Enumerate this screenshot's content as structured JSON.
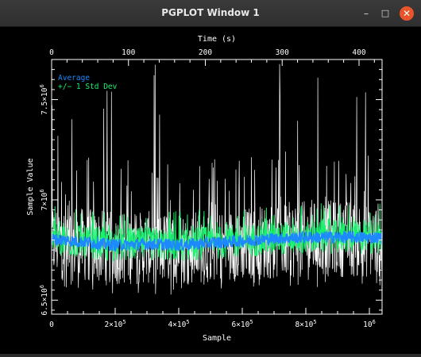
{
  "window": {
    "title": "PGPLOT Window 1",
    "minimize_glyph": "–",
    "maximize_glyph": "□",
    "close_glyph": "✕",
    "close_color": "#e9542a"
  },
  "chart_data": {
    "type": "line",
    "top_xlabel": "Time (s)",
    "xlabel": "Sample",
    "ylabel": "Sample Value",
    "top_ticks": [
      "0",
      "100",
      "200",
      "300",
      "400"
    ],
    "top_tick_values": [
      0,
      100,
      200,
      300,
      400
    ],
    "top_xlim": [
      0,
      430
    ],
    "bottom_ticks": [
      "0",
      "2×10^5",
      "4×10^5",
      "6×10^5",
      "8×10^5",
      "10^6"
    ],
    "bottom_tick_values": [
      0,
      200000,
      400000,
      600000,
      800000,
      1000000
    ],
    "xlim": [
      0,
      1040000
    ],
    "yticks": [
      "6.5×10^6",
      "7×10^6",
      "7.5×10^6"
    ],
    "ytick_values": [
      6500000,
      7000000,
      7500000
    ],
    "ylim": [
      6430000,
      7700000
    ],
    "legend": [
      {
        "label": "Average",
        "color": "#1e88ff"
      },
      {
        "label": "+/− 1 Std Dev",
        "color": "#19f06e"
      }
    ],
    "series": [
      {
        "name": "Average",
        "color": "#1e88ff",
        "x": [
          0,
          100000,
          200000,
          300000,
          400000,
          500000,
          600000,
          700000,
          800000,
          900000,
          1000000,
          1040000
        ],
        "y": [
          6805000,
          6790000,
          6775000,
          6780000,
          6775000,
          6785000,
          6795000,
          6808000,
          6813000,
          6815000,
          6812000,
          6812000
        ]
      },
      {
        "name": "+/− 1 Std Dev",
        "color": "#19f06e",
        "x": [
          0,
          100000,
          200000,
          300000,
          400000,
          500000,
          600000,
          700000,
          800000,
          900000,
          1000000,
          1040000
        ],
        "y_upper": [
          6890000,
          6875000,
          6860000,
          6865000,
          6860000,
          6870000,
          6880000,
          6893000,
          6898000,
          6900000,
          6897000,
          6897000
        ],
        "y_lower": [
          6720000,
          6705000,
          6690000,
          6695000,
          6690000,
          6700000,
          6710000,
          6723000,
          6728000,
          6730000,
          6727000,
          6727000
        ]
      },
      {
        "name": "",
        "color": "#ffffff",
        "x": [
          0,
          100000,
          200000,
          300000,
          400000,
          500000,
          600000,
          700000,
          800000,
          900000,
          1000000,
          1040000
        ],
        "y_upper": [
          6990000,
          6960000,
          6940000,
          6945000,
          6940000,
          6950000,
          6965000,
          6985000,
          6995000,
          7000000,
          6995000,
          6990000
        ],
        "y_lower": [
          6600000,
          6590000,
          6575000,
          6580000,
          6575000,
          6585000,
          6595000,
          6605000,
          6610000,
          6615000,
          6610000,
          6610000
        ],
        "spike_max": 7700000
      }
    ]
  }
}
